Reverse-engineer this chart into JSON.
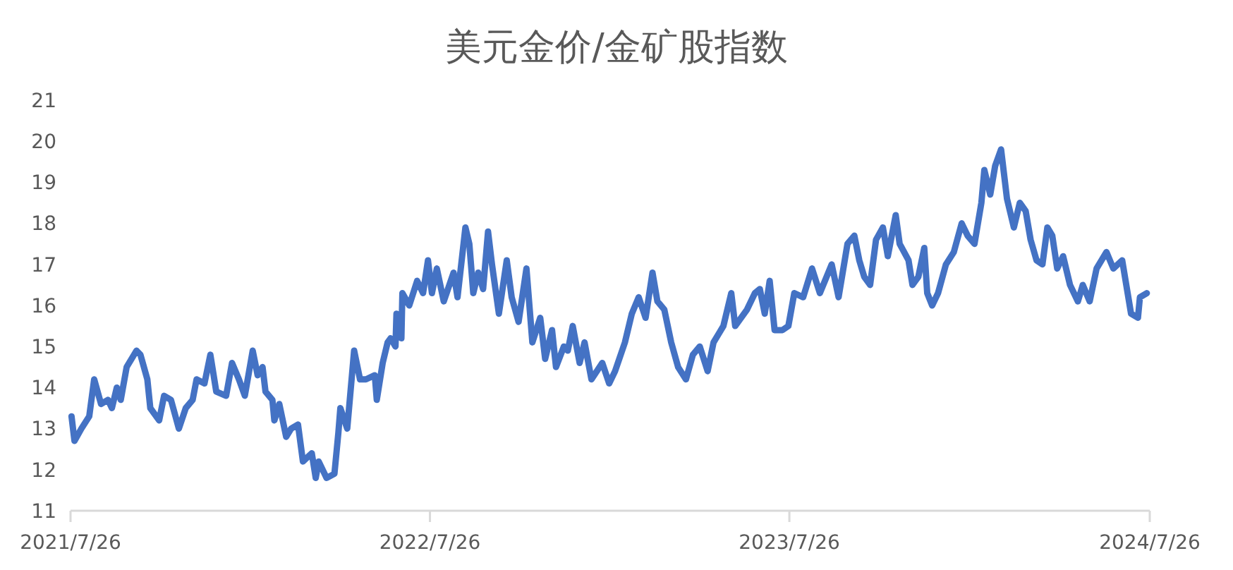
{
  "chart_data": {
    "type": "line",
    "title": "美元金价/金矿股指数",
    "x": [
      "2021-07-27",
      "2021-07-30",
      "2021-08-06",
      "2021-08-14",
      "2021-08-19",
      "2021-08-26",
      "2021-09-02",
      "2021-09-06",
      "2021-09-11",
      "2021-09-15",
      "2021-09-21",
      "2021-10-01",
      "2021-10-05",
      "2021-10-12",
      "2021-10-15",
      "2021-10-24",
      "2021-10-29",
      "2021-11-05",
      "2021-11-13",
      "2021-11-20",
      "2021-11-27",
      "2021-12-01",
      "2021-12-09",
      "2021-12-15",
      "2021-12-21",
      "2021-12-31",
      "2022-01-06",
      "2022-01-13",
      "2022-01-19",
      "2022-01-27",
      "2022-02-01",
      "2022-02-06",
      "2022-02-09",
      "2022-02-16",
      "2022-02-18",
      "2022-02-23",
      "2022-03-02",
      "2022-03-07",
      "2022-03-14",
      "2022-03-19",
      "2022-03-28",
      "2022-04-01",
      "2022-04-04",
      "2022-04-12",
      "2022-04-20",
      "2022-04-24",
      "2022-04-26",
      "2022-05-03",
      "2022-05-10",
      "2022-05-16",
      "2022-05-22",
      "2022-05-31",
      "2022-06-02",
      "2022-06-08",
      "2022-06-13",
      "2022-06-16",
      "2022-06-21",
      "2022-06-22",
      "2022-06-27",
      "2022-06-28",
      "2022-07-05",
      "2022-07-13",
      "2022-07-19",
      "2022-07-24",
      "2022-07-28",
      "2022-08-02",
      "2022-08-09",
      "2022-08-19",
      "2022-08-23",
      "2022-08-31",
      "2022-09-04",
      "2022-09-08",
      "2022-09-13",
      "2022-09-18",
      "2022-09-23",
      "2022-09-27",
      "2022-10-04",
      "2022-10-12",
      "2022-10-17",
      "2022-10-24",
      "2022-11-01",
      "2022-11-07",
      "2022-11-15",
      "2022-11-20",
      "2022-11-27",
      "2022-12-01",
      "2022-12-09",
      "2022-12-13",
      "2022-12-18",
      "2022-12-25",
      "2022-12-30",
      "2023-01-06",
      "2023-01-17",
      "2023-01-24",
      "2023-01-30",
      "2023-02-09",
      "2023-02-16",
      "2023-02-23",
      "2023-03-02",
      "2023-03-09",
      "2023-03-14",
      "2023-03-21",
      "2023-03-28",
      "2023-04-04",
      "2023-04-12",
      "2023-04-19",
      "2023-04-26",
      "2023-05-04",
      "2023-05-10",
      "2023-05-20",
      "2023-05-28",
      "2023-06-01",
      "2023-06-13",
      "2023-06-21",
      "2023-06-26",
      "2023-07-01",
      "2023-07-06",
      "2023-07-11",
      "2023-07-19",
      "2023-07-25",
      "2023-07-31",
      "2023-08-09",
      "2023-08-18",
      "2023-08-26",
      "2023-09-07",
      "2023-09-14",
      "2023-09-23",
      "2023-09-30",
      "2023-10-05",
      "2023-10-10",
      "2023-10-16",
      "2023-10-22",
      "2023-10-29",
      "2023-11-03",
      "2023-11-11",
      "2023-11-15",
      "2023-11-24",
      "2023-11-28",
      "2023-12-04",
      "2023-12-10",
      "2023-12-13",
      "2023-12-18",
      "2023-12-24",
      "2024-01-01",
      "2024-01-09",
      "2024-01-17",
      "2024-01-23",
      "2024-01-30",
      "2024-02-06",
      "2024-02-09",
      "2024-02-15",
      "2024-02-20",
      "2024-02-26",
      "2024-03-03",
      "2024-03-10",
      "2024-03-16",
      "2024-03-22",
      "2024-03-27",
      "2024-04-02",
      "2024-04-08",
      "2024-04-13",
      "2024-04-18",
      "2024-04-23",
      "2024-04-29",
      "2024-05-06",
      "2024-05-14",
      "2024-05-19",
      "2024-05-26",
      "2024-06-02",
      "2024-06-12",
      "2024-06-19",
      "2024-06-28",
      "2024-07-07",
      "2024-07-14",
      "2024-07-16",
      "2024-07-23"
    ],
    "series": [
      {
        "color": "#4472c4",
        "values": [
          13.3,
          12.7,
          13.0,
          13.3,
          14.2,
          13.6,
          13.7,
          13.5,
          14.0,
          13.7,
          14.5,
          14.9,
          14.8,
          14.2,
          13.5,
          13.2,
          13.8,
          13.7,
          13.0,
          13.5,
          13.7,
          14.2,
          14.1,
          14.8,
          13.9,
          13.8,
          14.6,
          14.2,
          13.8,
          14.9,
          14.3,
          14.5,
          13.9,
          13.7,
          13.2,
          13.6,
          12.8,
          13.0,
          13.1,
          12.2,
          12.4,
          11.8,
          12.2,
          11.8,
          11.9,
          12.9,
          13.5,
          13.0,
          14.9,
          14.2,
          14.2,
          14.3,
          13.7,
          14.6,
          15.1,
          15.2,
          15.0,
          15.8,
          15.2,
          16.3,
          16.0,
          16.6,
          16.3,
          17.1,
          16.3,
          16.9,
          16.1,
          16.8,
          16.2,
          17.9,
          17.5,
          16.3,
          16.8,
          16.4,
          17.8,
          17.0,
          15.8,
          17.1,
          16.2,
          15.6,
          16.9,
          15.1,
          15.7,
          14.7,
          15.4,
          14.5,
          15.0,
          14.9,
          15.5,
          14.6,
          15.1,
          14.2,
          14.6,
          14.1,
          14.4,
          15.1,
          15.8,
          16.2,
          15.7,
          16.8,
          16.1,
          15.9,
          15.1,
          14.5,
          14.2,
          14.8,
          15.0,
          14.4,
          15.1,
          15.5,
          16.3,
          15.5,
          15.9,
          16.3,
          16.4,
          15.8,
          16.6,
          15.4,
          15.4,
          15.5,
          16.3,
          16.2,
          16.9,
          16.3,
          17.0,
          16.2,
          17.5,
          17.7,
          17.1,
          16.7,
          16.5,
          17.6,
          17.9,
          17.2,
          18.2,
          17.5,
          17.1,
          16.5,
          16.7,
          17.4,
          16.3,
          16.0,
          16.3,
          17.0,
          17.3,
          18.0,
          17.7,
          17.5,
          18.5,
          19.3,
          18.7,
          19.4,
          19.8,
          18.6,
          17.9,
          18.5,
          18.3,
          17.6,
          17.1,
          17.0,
          17.9,
          17.7,
          16.9,
          17.2,
          16.5,
          16.1,
          16.5,
          16.1,
          16.9,
          17.3,
          16.9,
          17.1,
          15.8,
          15.7,
          16.2,
          16.3
        ]
      }
    ],
    "xlim": [
      "2021-07-26",
      "2024-07-26"
    ],
    "xticks": [
      {
        "value": "2021-07-26",
        "label": "2021/7/26"
      },
      {
        "value": "2022-07-26",
        "label": "2022/7/26"
      },
      {
        "value": "2023-07-26",
        "label": "2023/7/26"
      },
      {
        "value": "2024-07-26",
        "label": "2024/7/26"
      }
    ],
    "ylim": [
      11,
      21
    ],
    "yticks": [
      11,
      12,
      13,
      14,
      15,
      16,
      17,
      18,
      19,
      20,
      21
    ],
    "grid": false,
    "marker": "none",
    "line_style": "solid"
  }
}
